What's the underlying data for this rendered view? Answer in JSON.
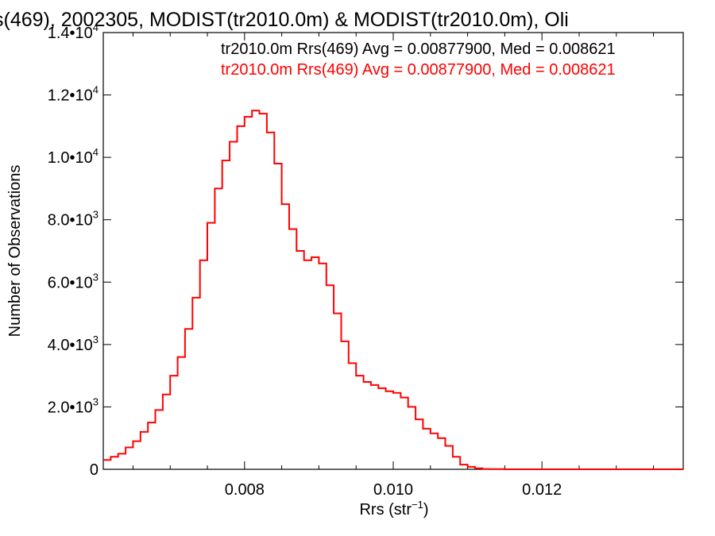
{
  "chart_data": {
    "type": "histogram",
    "title": "s(469), 2002305, MODIST(tr2010.0m) & MODIST(tr2010.0m), Oli",
    "xlabel": {
      "base": "Rrs (str",
      "sup": "−1",
      "close": ")"
    },
    "ylabel": "Number of Observations",
    "xlim": [
      0.0061,
      0.0139
    ],
    "ylim": [
      0,
      14000
    ],
    "grid": false,
    "x_ticks": [
      {
        "value": 0.008,
        "label": "0.008"
      },
      {
        "value": 0.01,
        "label": "0.010"
      },
      {
        "value": 0.012,
        "label": "0.012"
      }
    ],
    "y_ticks": [
      {
        "value": 0,
        "mant": "0",
        "exp": ""
      },
      {
        "value": 2000,
        "mant": "2.0•10",
        "exp": "3"
      },
      {
        "value": 4000,
        "mant": "4.0•10",
        "exp": "3"
      },
      {
        "value": 6000,
        "mant": "6.0•10",
        "exp": "3"
      },
      {
        "value": 8000,
        "mant": "8.0•10",
        "exp": "3"
      },
      {
        "value": 10000,
        "mant": "1.0•10",
        "exp": "4"
      },
      {
        "value": 12000,
        "mant": "1.2•10",
        "exp": "4"
      },
      {
        "value": 14000,
        "mant": "1.4•10",
        "exp": "4"
      }
    ],
    "legend": [
      {
        "text": "tr2010.0m Rrs(469) Avg = 0.00877900, Med = 0.008621",
        "color": "#000000"
      },
      {
        "text": "tr2010.0m Rrs(469) Avg = 0.00877900, Med = 0.008621",
        "color": "#ff0000"
      }
    ],
    "legend_position": "top-right",
    "series": [
      {
        "color": "#ff0000",
        "x": [
          0.0061,
          0.0062,
          0.0063,
          0.0064,
          0.0065,
          0.0066,
          0.0067,
          0.0068,
          0.0069,
          0.007,
          0.0071,
          0.0072,
          0.0073,
          0.0074,
          0.0075,
          0.0076,
          0.0077,
          0.0078,
          0.0079,
          0.008,
          0.0081,
          0.0082,
          0.0083,
          0.0084,
          0.0085,
          0.0086,
          0.0087,
          0.0088,
          0.0089,
          0.009,
          0.0091,
          0.0092,
          0.0093,
          0.0094,
          0.0095,
          0.0096,
          0.0097,
          0.0098,
          0.0099,
          0.01,
          0.0101,
          0.0102,
          0.0103,
          0.0104,
          0.0105,
          0.0106,
          0.0107,
          0.0108,
          0.0109,
          0.011,
          0.0111,
          0.0112,
          0.0113,
          0.0114,
          0.0115,
          0.0116,
          0.0117,
          0.0118,
          0.0119,
          0.012,
          0.0121,
          0.0122,
          0.0123,
          0.0124,
          0.0125,
          0.0126,
          0.0127,
          0.0128,
          0.0129,
          0.013,
          0.0131,
          0.0132,
          0.0133,
          0.0134,
          0.0135,
          0.0136,
          0.0137,
          0.0138,
          0.0139
        ],
        "y": [
          300,
          400,
          500,
          700,
          900,
          1200,
          1500,
          1900,
          2400,
          3000,
          3600,
          4500,
          5500,
          6700,
          7900,
          9000,
          9900,
          10500,
          11000,
          11300,
          11500,
          11400,
          10800,
          9800,
          8500,
          7700,
          7000,
          6700,
          6800,
          6600,
          5900,
          5000,
          4100,
          3400,
          3000,
          2800,
          2700,
          2600,
          2500,
          2450,
          2300,
          2000,
          1600,
          1300,
          1150,
          1000,
          750,
          400,
          150,
          80,
          30,
          10,
          5,
          5,
          0,
          0,
          0,
          0,
          0,
          0,
          0,
          0,
          0,
          0,
          0,
          0,
          0,
          0,
          0,
          0,
          0,
          0,
          0,
          0,
          0,
          0,
          0,
          0,
          0
        ]
      }
    ]
  }
}
